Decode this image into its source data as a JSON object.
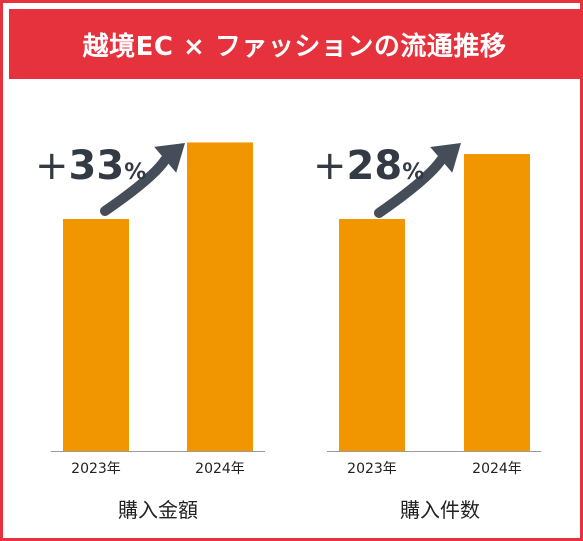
{
  "title": "越境EC × ファッションの流通推移",
  "colors": {
    "accent": "#e5323c",
    "bar": "#f29600",
    "arrow": "#454d58"
  },
  "chart_data": [
    {
      "type": "bar",
      "caption": "購入金額",
      "categories": [
        "2023年",
        "2024年"
      ],
      "values": [
        100,
        133
      ],
      "growth": {
        "sign": "+",
        "number": "33",
        "unit": "%"
      }
    },
    {
      "type": "bar",
      "caption": "購入件数",
      "categories": [
        "2023年",
        "2024年"
      ],
      "values": [
        100,
        128
      ],
      "growth": {
        "sign": "+",
        "number": "28",
        "unit": "%"
      }
    }
  ]
}
